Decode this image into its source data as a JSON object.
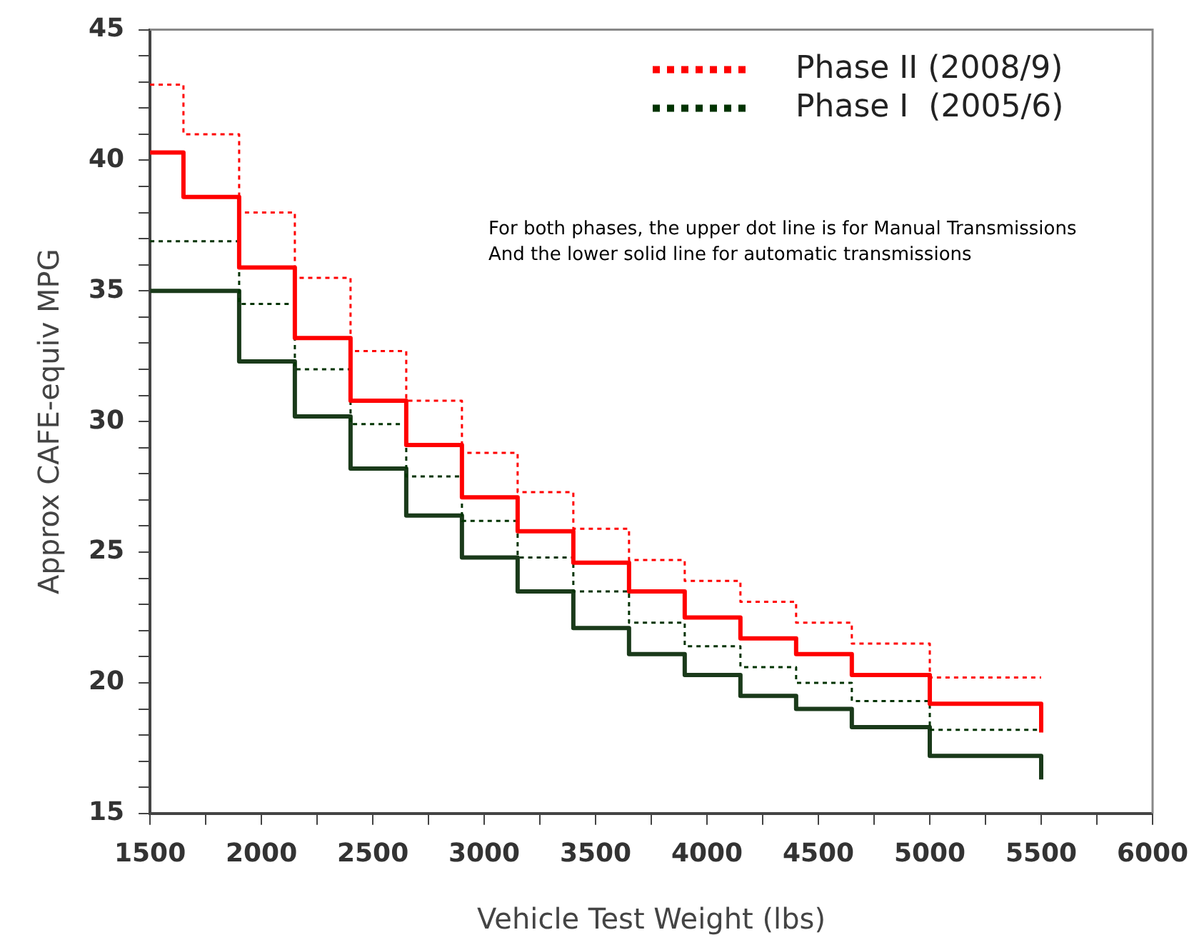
{
  "chart_data": {
    "type": "step",
    "xlabel": "Vehicle Test Weight (lbs)",
    "ylabel": "Approx CAFE-equiv MPG",
    "x": [
      1500,
      1650,
      1900,
      2150,
      2400,
      2650,
      2900,
      3150,
      3400,
      3650,
      3900,
      4150,
      4400,
      4650,
      5000,
      5500
    ],
    "series": [
      {
        "name": "Phase II (2008/9)",
        "color": "#ff0000",
        "line_style": "dotted",
        "values": [
          42.9,
          41.0,
          38.0,
          35.5,
          32.7,
          30.8,
          28.8,
          27.3,
          25.9,
          24.7,
          23.9,
          23.1,
          22.3,
          21.5,
          20.2,
          20.2
        ]
      },
      {
        "color": "#ff0000",
        "line_style": "solid",
        "values": [
          40.3,
          38.6,
          35.9,
          33.2,
          30.8,
          29.1,
          27.1,
          25.8,
          24.6,
          23.5,
          22.5,
          21.7,
          21.1,
          20.3,
          19.2,
          18.1
        ]
      },
      {
        "name": "Phase I  (2005/6)",
        "color": "#003300",
        "line_style": "dotted",
        "values": [
          36.9,
          36.9,
          34.5,
          32.0,
          29.9,
          27.9,
          26.2,
          24.8,
          23.5,
          22.3,
          21.4,
          20.6,
          20.0,
          19.3,
          18.2,
          18.2
        ]
      },
      {
        "color": "#1a3a1a",
        "line_style": "solid",
        "values": [
          35.0,
          35.0,
          32.3,
          30.2,
          28.2,
          26.4,
          24.8,
          23.5,
          22.1,
          21.1,
          20.3,
          19.5,
          19.0,
          18.3,
          17.2,
          16.3
        ]
      }
    ],
    "xlim": [
      1500,
      6000
    ],
    "xticks": [
      1500,
      {
        "value": 1750,
        "label": null
      },
      2000,
      {
        "value": 2250,
        "label": null
      },
      2500,
      {
        "value": 2750,
        "label": null
      },
      3000,
      {
        "value": 3250,
        "label": null
      },
      3500,
      {
        "value": 3750,
        "label": null
      },
      4000,
      {
        "value": 4250,
        "label": null
      },
      4500,
      {
        "value": 4750,
        "label": null
      },
      5000,
      {
        "value": 5250,
        "label": null
      },
      5500,
      {
        "value": 5750,
        "label": null
      },
      6000
    ],
    "ylim": [
      15,
      45
    ],
    "yticks": [
      15,
      {
        "value": 16,
        "label": null
      },
      {
        "value": 17,
        "label": null
      },
      {
        "value": 18,
        "label": null
      },
      {
        "value": 19,
        "label": null
      },
      20,
      {
        "value": 21,
        "label": null
      },
      {
        "value": 22,
        "label": null
      },
      {
        "value": 23,
        "label": null
      },
      {
        "value": 24,
        "label": null
      },
      25,
      {
        "value": 26,
        "label": null
      },
      {
        "value": 27,
        "label": null
      },
      {
        "value": 28,
        "label": null
      },
      {
        "value": 29,
        "label": null
      },
      30,
      {
        "value": 31,
        "label": null
      },
      {
        "value": 32,
        "label": null
      },
      {
        "value": 33,
        "label": null
      },
      {
        "value": 34,
        "label": null
      },
      35,
      {
        "value": 36,
        "label": null
      },
      {
        "value": 37,
        "label": null
      },
      {
        "value": 38,
        "label": null
      },
      {
        "value": 39,
        "label": null
      },
      40,
      {
        "value": 41,
        "label": null
      },
      {
        "value": 42,
        "label": null
      },
      {
        "value": 43,
        "label": null
      },
      {
        "value": 44,
        "label": null
      },
      45
    ],
    "grid": false,
    "legend": "top right",
    "marker": "none",
    "annotations": [
      "For both phases, the upper dot line is for Manual Transmissions",
      "And the lower solid line for automatic transmissions"
    ]
  }
}
